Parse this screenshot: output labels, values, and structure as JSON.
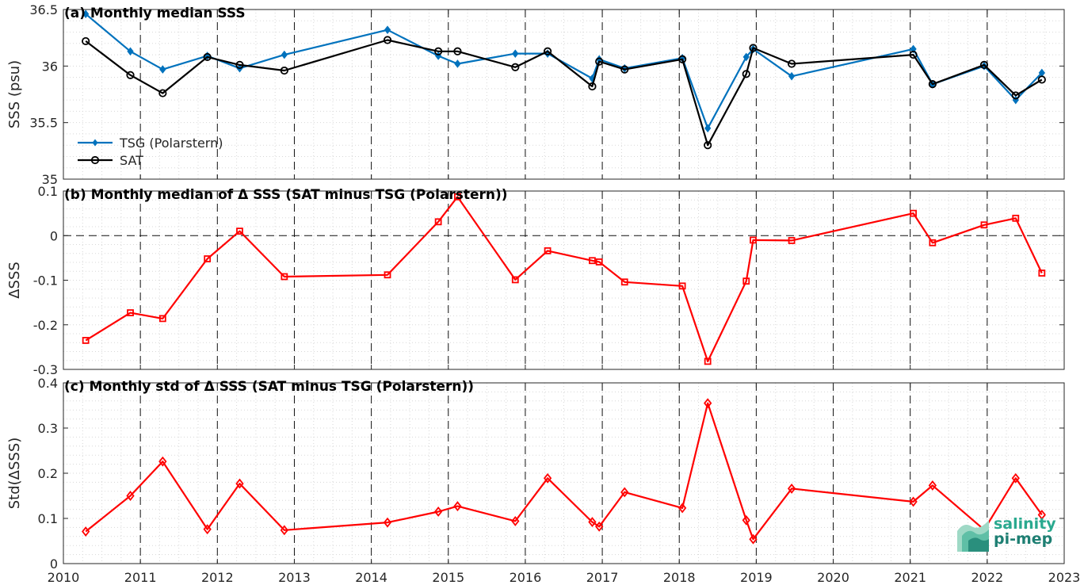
{
  "chart_data": [
    {
      "id": "a",
      "type": "line",
      "title": "(a) Monthly median SSS",
      "ylabel": "SSS (psu)",
      "xlim": [
        2010,
        2023
      ],
      "ylim": [
        35,
        36.5
      ],
      "yticks": [
        35,
        35.5,
        36,
        36.5
      ],
      "ytick_labels": [
        "35",
        "35.5",
        "36",
        "36.5"
      ],
      "grid": "minor dotted, dashed vertical at each year",
      "legend_position": "bottom-left",
      "series": [
        {
          "name": "TSG (Polarstern)",
          "color": "#0072BD",
          "marker": "diamond-filled",
          "x": [
            2010.29,
            2010.87,
            2011.29,
            2011.87,
            2012.29,
            2012.87,
            2014.21,
            2014.87,
            2015.12,
            2015.87,
            2016.29,
            2016.87,
            2016.96,
            2017.29,
            2018.04,
            2018.37,
            2018.87,
            2018.96,
            2019.46,
            2021.04,
            2021.29,
            2021.96,
            2022.37,
            2022.71
          ],
          "y": [
            36.46,
            36.13,
            35.97,
            36.09,
            35.98,
            36.1,
            36.32,
            36.09,
            36.02,
            36.11,
            36.11,
            35.89,
            36.06,
            35.98,
            36.07,
            35.45,
            36.08,
            36.15,
            35.91,
            36.15,
            35.84,
            36.0,
            35.7,
            35.94
          ]
        },
        {
          "name": "SAT",
          "color": "#000000",
          "marker": "circle-open",
          "x": [
            2010.29,
            2010.87,
            2011.29,
            2011.87,
            2012.29,
            2012.87,
            2014.21,
            2014.87,
            2015.12,
            2015.87,
            2016.29,
            2016.87,
            2016.96,
            2017.29,
            2018.04,
            2018.37,
            2018.87,
            2018.96,
            2019.46,
            2021.04,
            2021.29,
            2021.96,
            2022.37,
            2022.71
          ],
          "y": [
            36.22,
            35.92,
            35.76,
            36.08,
            36.01,
            35.96,
            36.23,
            36.13,
            36.13,
            35.99,
            36.13,
            35.82,
            36.04,
            35.97,
            36.06,
            35.3,
            35.93,
            36.16,
            36.02,
            36.1,
            35.84,
            36.01,
            35.74,
            35.88
          ]
        }
      ]
    },
    {
      "id": "b",
      "type": "line",
      "title": "(b) Monthly median of Δ SSS (SAT minus TSG (Polarstern))",
      "ylabel": "ΔSSS",
      "xlim": [
        2010,
        2023
      ],
      "ylim": [
        -0.3,
        0.1
      ],
      "yticks": [
        -0.3,
        -0.2,
        -0.1,
        0,
        0.1
      ],
      "ytick_labels": [
        "-0.3",
        "-0.2",
        "-0.1",
        "0",
        "0.1"
      ],
      "zero_line": "dashed",
      "series": [
        {
          "color": "#FF0000",
          "marker": "square-open",
          "x": [
            2010.29,
            2010.87,
            2011.29,
            2011.87,
            2012.29,
            2012.87,
            2014.21,
            2014.87,
            2015.12,
            2015.87,
            2016.29,
            2016.87,
            2016.96,
            2017.29,
            2018.04,
            2018.37,
            2018.87,
            2018.96,
            2019.46,
            2021.04,
            2021.29,
            2021.96,
            2022.37,
            2022.71
          ],
          "y": [
            -0.235,
            -0.173,
            -0.186,
            -0.052,
            0.01,
            -0.092,
            -0.088,
            0.031,
            0.087,
            -0.099,
            -0.034,
            -0.056,
            -0.059,
            -0.104,
            -0.113,
            -0.282,
            -0.102,
            -0.01,
            -0.011,
            0.05,
            -0.016,
            0.024,
            0.039,
            -0.084
          ]
        }
      ]
    },
    {
      "id": "c",
      "type": "line",
      "title": "(c) Monthly std of Δ SSS (SAT minus TSG (Polarstern))",
      "ylabel": "Std(ΔSSS)",
      "xlabel": "",
      "xlim": [
        2010,
        2023
      ],
      "ylim": [
        0,
        0.4
      ],
      "yticks": [
        0,
        0.1,
        0.2,
        0.3,
        0.4
      ],
      "ytick_labels": [
        "0",
        "0.1",
        "0.2",
        "0.3",
        "0.4"
      ],
      "xtick_labels": [
        "2010",
        "2011",
        "2012",
        "2013",
        "2014",
        "2015",
        "2016",
        "2017",
        "2018",
        "2019",
        "2020",
        "2021",
        "2022",
        "2023"
      ],
      "series": [
        {
          "color": "#FF0000",
          "marker": "diamond-open",
          "x": [
            2010.29,
            2010.87,
            2011.29,
            2011.87,
            2012.29,
            2012.87,
            2014.21,
            2014.87,
            2015.12,
            2015.87,
            2016.29,
            2016.87,
            2016.96,
            2017.29,
            2018.04,
            2018.37,
            2018.87,
            2018.96,
            2019.46,
            2021.04,
            2021.29,
            2021.96,
            2022.37,
            2022.71
          ],
          "y": [
            0.071,
            0.15,
            0.226,
            0.076,
            0.177,
            0.074,
            0.091,
            0.115,
            0.127,
            0.094,
            0.189,
            0.092,
            0.082,
            0.158,
            0.123,
            0.355,
            0.096,
            0.054,
            0.166,
            0.137,
            0.173,
            0.075,
            0.189,
            0.108
          ]
        }
      ]
    }
  ],
  "logo": {
    "line1": "salinity",
    "line2": "pi-mep"
  }
}
